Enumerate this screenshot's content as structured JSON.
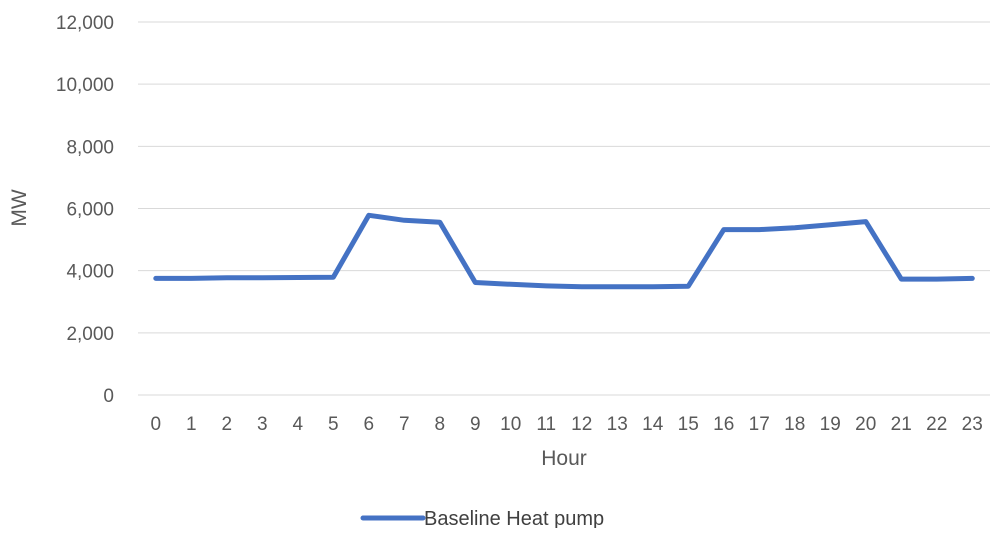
{
  "chart_data": {
    "type": "line",
    "title": "",
    "xlabel": "Hour",
    "ylabel": "MW",
    "ylim": [
      0,
      12000
    ],
    "yticks": [
      0,
      2000,
      4000,
      6000,
      8000,
      10000,
      12000
    ],
    "ytick_labels": [
      "0",
      "2,000",
      "4,000",
      "6,000",
      "8,000",
      "10,000",
      "12,000"
    ],
    "categories": [
      "0",
      "1",
      "2",
      "3",
      "4",
      "5",
      "6",
      "7",
      "8",
      "9",
      "10",
      "11",
      "12",
      "13",
      "14",
      "15",
      "16",
      "17",
      "18",
      "19",
      "20",
      "21",
      "22",
      "23"
    ],
    "grid": true,
    "legend": "bottom-center",
    "series": [
      {
        "name": "Baseline Heat pump",
        "color": "#4472c4",
        "values": [
          3750,
          3750,
          3770,
          3770,
          3780,
          3790,
          5780,
          5620,
          5560,
          3620,
          3560,
          3510,
          3480,
          3480,
          3480,
          3500,
          5320,
          5320,
          5380,
          5480,
          5580,
          3730,
          3730,
          3750
        ]
      }
    ]
  }
}
